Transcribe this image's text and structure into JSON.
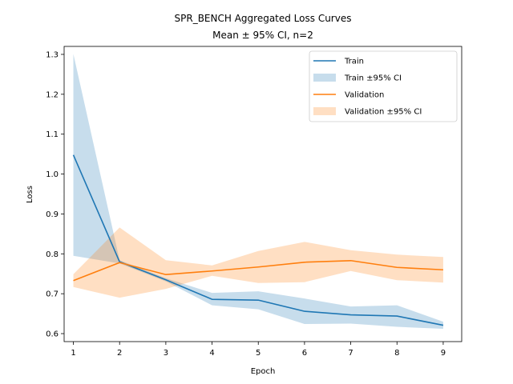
{
  "chart_data": {
    "type": "line",
    "title": "SPR_BENCH Aggregated Loss Curves",
    "subtitle": "Mean ± 95% CI, n=2",
    "xlabel": "Epoch",
    "ylabel": "Loss",
    "xlim": [
      0.8,
      9.4
    ],
    "ylim": [
      0.58,
      1.32
    ],
    "xticks": [
      1,
      2,
      3,
      4,
      5,
      6,
      7,
      8,
      9
    ],
    "yticks": [
      0.6,
      0.7,
      0.8,
      0.9,
      1.0,
      1.1,
      1.2,
      1.3
    ],
    "ytick_labels": [
      "0.6",
      "0.7",
      "0.8",
      "0.9",
      "1.0",
      "1.1",
      "1.2",
      "1.3"
    ],
    "legend_position": "top-right",
    "grid": false,
    "x": [
      1,
      2,
      3,
      4,
      5,
      6,
      7,
      8,
      9
    ],
    "series": [
      {
        "name": "Train",
        "band_name": "Train ±95% CI",
        "color": "#1f77b4",
        "band_color": "#1f77b4",
        "values": [
          1.048,
          0.78,
          0.735,
          0.686,
          0.684,
          0.656,
          0.647,
          0.644,
          0.621
        ],
        "lower": [
          0.795,
          0.776,
          0.731,
          0.671,
          0.661,
          0.624,
          0.625,
          0.617,
          0.612
        ],
        "upper": [
          1.301,
          0.784,
          0.739,
          0.702,
          0.706,
          0.688,
          0.668,
          0.671,
          0.63
        ]
      },
      {
        "name": "Validation",
        "band_name": "Validation ±95% CI",
        "color": "#ff7f0e",
        "band_color": "#ff7f0e",
        "values": [
          0.733,
          0.778,
          0.748,
          0.757,
          0.767,
          0.779,
          0.783,
          0.766,
          0.76
        ],
        "lower": [
          0.717,
          0.69,
          0.712,
          0.745,
          0.727,
          0.729,
          0.757,
          0.734,
          0.728
        ],
        "upper": [
          0.749,
          0.866,
          0.784,
          0.771,
          0.807,
          0.83,
          0.809,
          0.798,
          0.792
        ]
      }
    ]
  }
}
